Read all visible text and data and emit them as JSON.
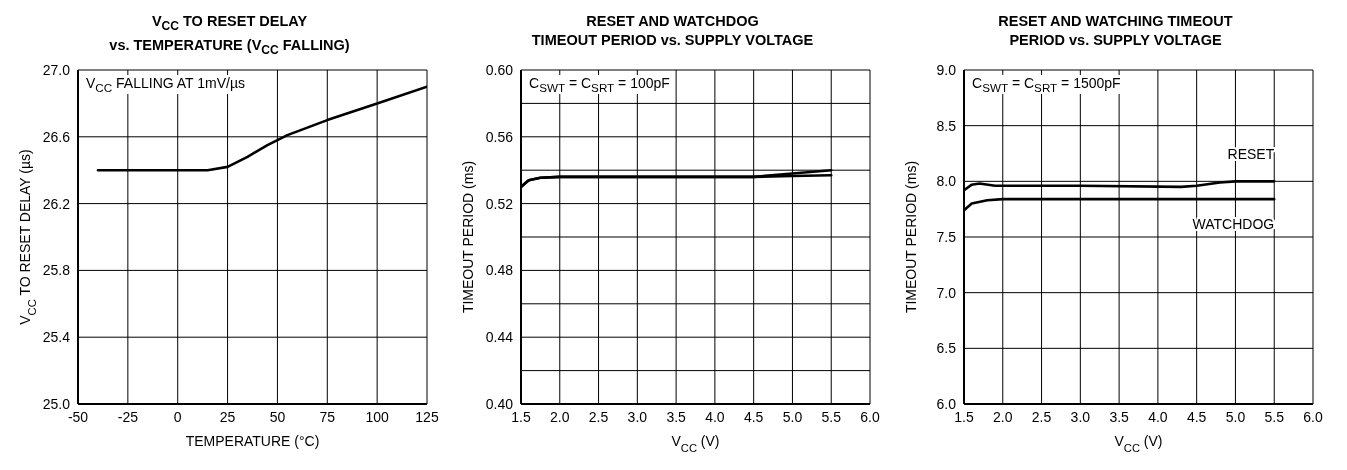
{
  "chart_data": [
    {
      "type": "line",
      "title": "V$_{CC}$ TO RESET DELAY\nvs. TEMPERATURE (V$_{CC}$ FALLING)",
      "xlabel": "TEMPERATURE (°C)",
      "ylabel": "V$_{CC}$ TO RESET DELAY (µs)",
      "annotations": [
        "V$_{CC}$ FALLING AT 1mV/µs"
      ],
      "series": [
        {
          "color": "#000000",
          "x": [
            -40,
            -25,
            0,
            15,
            25,
            35,
            45,
            55,
            75,
            100,
            125
          ],
          "values": [
            26.4,
            26.4,
            26.4,
            26.4,
            26.42,
            26.48,
            26.55,
            26.61,
            26.7,
            26.8,
            26.9
          ]
        }
      ],
      "xlim": [
        -50,
        125
      ],
      "xticks": [
        -50,
        -25,
        0,
        25,
        50,
        75,
        100,
        125
      ],
      "ylim": [
        25,
        27
      ],
      "yticks": [
        {
          "value": 25,
          "label": "25.0"
        },
        25.4,
        25.8,
        26.2,
        26.6,
        {
          "value": 27,
          "label": "27.0"
        }
      ],
      "grid": true,
      "legend": false,
      "marker": "none",
      "line_style": "solid"
    },
    {
      "type": "line",
      "title": "RESET AND WATCHDOG\nTIMEOUT PERIOD vs. SUPPLY VOLTAGE",
      "xlabel": "V$_{CC}$ (V)",
      "ylabel": "TIMEOUT PERIOD (ms)",
      "annotations": [
        "C$_{SWT}$ = C$_{SRT}$ = 100pF"
      ],
      "series": [
        {
          "color": "#000000",
          "x": [
            1.5,
            1.55,
            1.6,
            1.75,
            2.0,
            3.0,
            4.5,
            5.0,
            5.5
          ],
          "values": [
            0.53,
            0.532,
            0.534,
            0.5355,
            0.536,
            0.536,
            0.536,
            0.538,
            0.54
          ]
        },
        {
          "color": "#000000",
          "x": [
            1.5,
            1.55,
            1.6,
            1.75,
            2.0,
            3.0,
            4.5,
            5.0,
            5.5
          ],
          "values": [
            0.53,
            0.532,
            0.534,
            0.5355,
            0.536,
            0.536,
            0.536,
            0.5365,
            0.537
          ]
        }
      ],
      "xlim": [
        1.5,
        6
      ],
      "xticks": [
        1.5,
        {
          "value": 2,
          "label": "2.0"
        },
        2.5,
        {
          "value": 3,
          "label": "3.0"
        },
        3.5,
        {
          "value": 4,
          "label": "4.0"
        },
        4.5,
        {
          "value": 5,
          "label": "5.0"
        },
        5.5,
        {
          "value": 6,
          "label": "6.0"
        }
      ],
      "ylim": [
        0.4,
        0.6
      ],
      "yticks": [
        {
          "value": 0.4,
          "label": "0.40"
        },
        {
          "value": 0.42,
          "label": null
        },
        0.44,
        {
          "value": 0.46,
          "label": null
        },
        0.48,
        {
          "value": 0.5,
          "label": null
        },
        0.52,
        {
          "value": 0.54,
          "label": null
        },
        0.56,
        {
          "value": 0.58,
          "label": null
        },
        {
          "value": 0.6,
          "label": "0.60"
        }
      ],
      "grid": true,
      "legend": false,
      "marker": "none",
      "line_style": "solid"
    },
    {
      "type": "line",
      "title": "RESET AND WATCHING TIMEOUT\nPERIOD vs. SUPPLY VOLTAGE",
      "xlabel": "V$_{CC}$ (V)",
      "ylabel": "TIMEOUT PERIOD (ms)",
      "annotations": [
        "C$_{SWT}$ = C$_{SRT}$ = 1500pF"
      ],
      "series": [
        {
          "name": "RESET",
          "color": "#000000",
          "x": [
            1.5,
            1.6,
            1.7,
            1.9,
            2.0,
            3.0,
            4.3,
            4.5,
            4.8,
            5.0,
            5.5
          ],
          "values": [
            7.92,
            7.97,
            7.98,
            7.96,
            7.96,
            7.96,
            7.95,
            7.96,
            7.99,
            8.0,
            8.0
          ]
        },
        {
          "name": "WATCHDOG",
          "color": "#000000",
          "x": [
            1.5,
            1.6,
            1.8,
            2.0,
            2.5,
            3.5,
            5.5
          ],
          "values": [
            7.74,
            7.8,
            7.83,
            7.84,
            7.84,
            7.84,
            7.84
          ]
        }
      ],
      "xlim": [
        1.5,
        6
      ],
      "xticks": [
        1.5,
        {
          "value": 2,
          "label": "2.0"
        },
        2.5,
        {
          "value": 3,
          "label": "3.0"
        },
        3.5,
        {
          "value": 4,
          "label": "4.0"
        },
        4.5,
        {
          "value": 5,
          "label": "5.0"
        },
        5.5,
        {
          "value": 6,
          "label": "6.0"
        }
      ],
      "ylim": [
        6,
        9
      ],
      "yticks": [
        {
          "value": 6,
          "label": "6.0"
        },
        6.5,
        {
          "value": 7,
          "label": "7.0"
        },
        7.5,
        {
          "value": 8,
          "label": "8.0"
        },
        8.5,
        {
          "value": 9,
          "label": "9.0"
        }
      ],
      "grid": true,
      "legend": false,
      "marker": "none",
      "line_style": "solid"
    }
  ]
}
